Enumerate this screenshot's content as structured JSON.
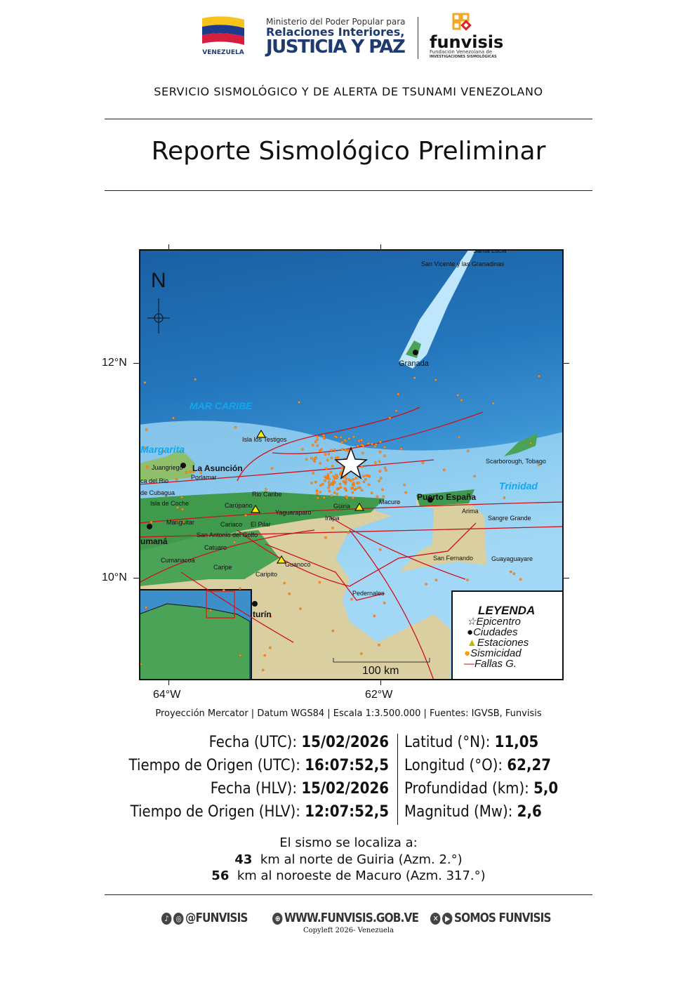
{
  "header": {
    "country_logo_text": "VENEZUELA",
    "ministry_line1": "Ministerio del Poder Popular para",
    "ministry_line2": "Relaciones Interiores,",
    "ministry_line3": "JUSTICIA Y PAZ",
    "funvisis_logo": "funvisis",
    "funvisis_sub1": "Fundación Venezolana de",
    "funvisis_sub2": "INVESTIGACIONES SISMOLÓGICAS",
    "service_title": "SERVICIO SISMOLÓGICO Y DE ALERTA DE TSUNAMI VENEZOLANO",
    "report_title": "Reporte Sismológico Preliminar"
  },
  "map": {
    "north": "N",
    "axes": {
      "lat_top": "12°N",
      "lat_bottom": "10°N",
      "lon_left": "64°W",
      "lon_right": "62°W"
    },
    "labels": [
      "Santa Lucia",
      "San Vicente y las Granadinas",
      "Granada",
      "MAR CARIBE",
      "Isla los Testigos",
      "Margarita",
      "La Asunción",
      "Juangriego",
      "Porlamar",
      "ca del Rio",
      "de Cubagua",
      "Isla de Coche",
      "Carúpano",
      "Rio Caribe",
      "Yaguaraparo",
      "Irapa",
      "Güiria",
      "Macuro",
      "Puerto España",
      "Arima",
      "Sangre Grande",
      "Trinidad",
      "Scarborough, Tobago",
      "San Fernando",
      "Guayaguayare",
      "Mariguitar",
      "Cariaco",
      "El Pilar",
      "San Antonio del Golfo",
      "umaná",
      "Cumanacoa",
      "Catuaro",
      "Caripe",
      "Caripito",
      "Guanoco",
      "Pedernales",
      "turín"
    ],
    "scale": "100 km",
    "legend": {
      "title": "LEYENDA",
      "items": [
        "Epicentro",
        "Ciudades",
        "Estaciones",
        "Sismicidad",
        "Fallas G."
      ]
    },
    "colors": {
      "fault": "#d0101a",
      "seismicity": "#ff9a00",
      "station": "#ffee00"
    }
  },
  "caption": "Proyección Mercator | Datum WGS84 | Escala 1:3.500.000 | Fuentes: IGVSB, Funvisis",
  "event": {
    "left": [
      {
        "label": "Fecha (UTC):",
        "value": "15/02/2026"
      },
      {
        "label": "Tiempo de Origen (UTC):",
        "value": "16:07:52,5"
      },
      {
        "label": "Fecha (HLV):",
        "value": "15/02/2026"
      },
      {
        "label": "Tiempo de Origen (HLV):",
        "value": "12:07:52,5"
      }
    ],
    "right": [
      {
        "label": "Latitud (°N):",
        "value": "11,05"
      },
      {
        "label": "Longitud (°O):",
        "value": "62,27"
      },
      {
        "label": "Profundidad (km):",
        "value": "5,0"
      },
      {
        "label": "Magnitud (Mw):",
        "value": "2,6"
      }
    ]
  },
  "location": {
    "intro": "El sismo se localiza a:",
    "refs": [
      {
        "dist": "43",
        "text": "km al norte de Guiria (Azm. 2.°)"
      },
      {
        "dist": "56",
        "text": "km al noroeste de Macuro (Azm. 317.°)"
      }
    ]
  },
  "footer": {
    "social1": "@FUNVISIS",
    "web": "WWW.FUNVISIS.GOB.VE",
    "social2": "SOMOS FUNVISIS",
    "copyleft": "Copyleft 2026- Venezuela"
  }
}
